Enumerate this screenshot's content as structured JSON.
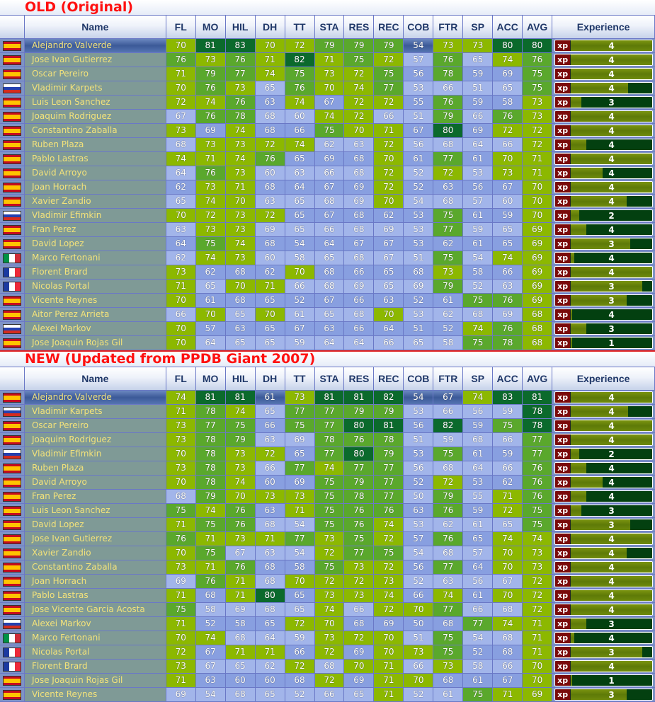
{
  "columns": [
    "",
    "Name",
    "FL",
    "MO",
    "HIL",
    "DH",
    "TT",
    "STA",
    "RES",
    "REC",
    "COB",
    "FTR",
    "SP",
    "ACC",
    "AVG",
    "Experience"
  ],
  "xp_badge": "xp",
  "colors": {
    "elite": "#0b6a2c",
    "high": "#5aa82c",
    "mid": "#8cb800",
    "low_a": "#889fe0",
    "low_b": "#a2b5ea",
    "label": "#ff1010"
  },
  "sections": [
    {
      "label": "OLD (Original)",
      "rows": [
        {
          "flag": "spain",
          "name": "Alejandro Valverde",
          "stats": [
            70,
            81,
            83,
            70,
            72,
            79,
            79,
            79,
            54,
            73,
            73,
            80,
            80
          ],
          "xp": 4,
          "xp_fill": 1.0
        },
        {
          "flag": "spain",
          "name": "Jose Ivan Gutierrez",
          "stats": [
            76,
            73,
            76,
            71,
            82,
            71,
            75,
            72,
            57,
            76,
            65,
            74,
            76
          ],
          "xp": 4,
          "xp_fill": 1.0
        },
        {
          "flag": "spain",
          "name": "Oscar Pereiro",
          "stats": [
            71,
            79,
            77,
            74,
            75,
            73,
            72,
            75,
            56,
            78,
            59,
            69,
            75
          ],
          "xp": 4,
          "xp_fill": 1.0
        },
        {
          "flag": "russia",
          "name": "Vladimir Karpets",
          "stats": [
            70,
            76,
            73,
            65,
            76,
            70,
            74,
            77,
            53,
            66,
            51,
            65,
            75
          ],
          "xp": 4,
          "xp_fill": 0.7
        },
        {
          "flag": "spain",
          "name": "Luis Leon Sanchez",
          "stats": [
            72,
            74,
            76,
            63,
            74,
            67,
            72,
            72,
            55,
            76,
            59,
            58,
            73
          ],
          "xp": 3,
          "xp_fill": 0.13
        },
        {
          "flag": "spain",
          "name": "Joaquim Rodriguez",
          "stats": [
            67,
            76,
            78,
            68,
            60,
            74,
            72,
            66,
            51,
            79,
            66,
            76,
            73
          ],
          "xp": 4,
          "xp_fill": 1.0
        },
        {
          "flag": "spain",
          "name": "Constantino Zaballa",
          "stats": [
            73,
            69,
            74,
            68,
            66,
            75,
            70,
            71,
            67,
            80,
            69,
            72,
            72
          ],
          "xp": 4,
          "xp_fill": 1.0
        },
        {
          "flag": "spain",
          "name": "Ruben Plaza",
          "stats": [
            68,
            73,
            73,
            72,
            74,
            62,
            63,
            72,
            56,
            68,
            64,
            66,
            72
          ],
          "xp": 4,
          "xp_fill": 0.19
        },
        {
          "flag": "spain",
          "name": "Pablo Lastras",
          "stats": [
            74,
            71,
            74,
            76,
            65,
            69,
            68,
            70,
            61,
            77,
            61,
            70,
            71
          ],
          "xp": 4,
          "xp_fill": 1.0
        },
        {
          "flag": "spain",
          "name": "David Arroyo",
          "stats": [
            64,
            76,
            73,
            60,
            63,
            66,
            68,
            72,
            52,
            72,
            53,
            73,
            71
          ],
          "xp": 4,
          "xp_fill": 0.39
        },
        {
          "flag": "spain",
          "name": "Joan Horrach",
          "stats": [
            62,
            73,
            71,
            68,
            64,
            67,
            69,
            72,
            52,
            63,
            56,
            67,
            70
          ],
          "xp": 4,
          "xp_fill": 1.0
        },
        {
          "flag": "spain",
          "name": "Xavier Zandio",
          "stats": [
            65,
            74,
            70,
            63,
            65,
            68,
            69,
            70,
            54,
            68,
            57,
            60,
            70
          ],
          "xp": 4,
          "xp_fill": 0.69
        },
        {
          "flag": "russia",
          "name": "Vladimir Efimkin",
          "stats": [
            70,
            72,
            73,
            72,
            65,
            67,
            68,
            62,
            53,
            75,
            61,
            59,
            70
          ],
          "xp": 2,
          "xp_fill": 0.1
        },
        {
          "flag": "spain",
          "name": "Fran Perez",
          "stats": [
            63,
            73,
            73,
            69,
            65,
            66,
            68,
            69,
            53,
            77,
            59,
            65,
            69
          ],
          "xp": 4,
          "xp_fill": 0.19
        },
        {
          "flag": "spain",
          "name": "David Lopez",
          "stats": [
            64,
            75,
            74,
            68,
            54,
            64,
            67,
            67,
            53,
            62,
            61,
            65,
            69
          ],
          "xp": 3,
          "xp_fill": 0.73
        },
        {
          "flag": "italy",
          "name": "Marco Fertonani",
          "stats": [
            62,
            74,
            73,
            60,
            58,
            65,
            68,
            67,
            51,
            75,
            54,
            74,
            69
          ],
          "xp": 4,
          "xp_fill": 0.04
        },
        {
          "flag": "france",
          "name": "Florent Brard",
          "stats": [
            73,
            62,
            68,
            62,
            70,
            68,
            66,
            65,
            68,
            73,
            58,
            66,
            69
          ],
          "xp": 4,
          "xp_fill": 1.0
        },
        {
          "flag": "france",
          "name": "Nicolas Portal",
          "stats": [
            71,
            65,
            70,
            71,
            66,
            68,
            69,
            65,
            69,
            79,
            52,
            63,
            69
          ],
          "xp": 3,
          "xp_fill": 0.88
        },
        {
          "flag": "spain",
          "name": "Vicente Reynes",
          "stats": [
            70,
            61,
            68,
            65,
            52,
            67,
            66,
            63,
            52,
            61,
            75,
            76,
            69
          ],
          "xp": 3,
          "xp_fill": 0.69
        },
        {
          "flag": "spain",
          "name": "Aitor Perez Arrieta",
          "stats": [
            66,
            70,
            65,
            70,
            61,
            65,
            68,
            70,
            53,
            62,
            68,
            69,
            68
          ],
          "xp": 4,
          "xp_fill": 0.02
        },
        {
          "flag": "russia",
          "name": "Alexei Markov",
          "stats": [
            70,
            57,
            63,
            65,
            67,
            63,
            66,
            64,
            51,
            52,
            74,
            76,
            68
          ],
          "xp": 3,
          "xp_fill": 0.19
        },
        {
          "flag": "spain",
          "name": "Jose Joaquin Rojas Gil",
          "stats": [
            70,
            64,
            65,
            65,
            59,
            64,
            64,
            66,
            65,
            58,
            75,
            78,
            68
          ],
          "xp": 1,
          "xp_fill": 0.02
        }
      ]
    },
    {
      "label": "NEW (Updated from PPDB Giant 2007)",
      "rows": [
        {
          "flag": "spain",
          "name": "Alejandro Valverde",
          "stats": [
            74,
            81,
            81,
            61,
            73,
            81,
            81,
            82,
            54,
            67,
            74,
            83,
            81
          ],
          "xp": 4,
          "xp_fill": 1.0
        },
        {
          "flag": "russia",
          "name": "Vladimir Karpets",
          "stats": [
            71,
            78,
            74,
            65,
            77,
            77,
            79,
            79,
            53,
            66,
            56,
            59,
            78
          ],
          "xp": 4,
          "xp_fill": 0.7
        },
        {
          "flag": "spain",
          "name": "Oscar Pereiro",
          "stats": [
            73,
            77,
            75,
            66,
            75,
            77,
            80,
            81,
            56,
            82,
            59,
            75,
            78
          ],
          "xp": 4,
          "xp_fill": 1.0
        },
        {
          "flag": "spain",
          "name": "Joaquim Rodriguez",
          "stats": [
            73,
            78,
            79,
            63,
            69,
            78,
            76,
            78,
            51,
            59,
            68,
            66,
            77
          ],
          "xp": 4,
          "xp_fill": 1.0
        },
        {
          "flag": "russia",
          "name": "Vladimir Efimkin",
          "stats": [
            70,
            78,
            73,
            72,
            65,
            77,
            80,
            79,
            53,
            75,
            61,
            59,
            77
          ],
          "xp": 2,
          "xp_fill": 0.1
        },
        {
          "flag": "spain",
          "name": "Ruben Plaza",
          "stats": [
            73,
            78,
            73,
            66,
            77,
            74,
            77,
            77,
            56,
            68,
            64,
            66,
            76
          ],
          "xp": 4,
          "xp_fill": 0.19
        },
        {
          "flag": "spain",
          "name": "David Arroyo",
          "stats": [
            70,
            78,
            74,
            60,
            69,
            75,
            79,
            77,
            52,
            72,
            53,
            62,
            76
          ],
          "xp": 4,
          "xp_fill": 0.39
        },
        {
          "flag": "spain",
          "name": "Fran Perez",
          "stats": [
            68,
            79,
            70,
            73,
            73,
            75,
            78,
            77,
            50,
            79,
            55,
            71,
            76
          ],
          "xp": 4,
          "xp_fill": 0.19
        },
        {
          "flag": "spain",
          "name": "Luis Leon Sanchez",
          "stats": [
            75,
            74,
            76,
            63,
            71,
            75,
            76,
            76,
            63,
            76,
            59,
            72,
            75
          ],
          "xp": 3,
          "xp_fill": 0.13
        },
        {
          "flag": "spain",
          "name": "David Lopez",
          "stats": [
            71,
            75,
            76,
            68,
            54,
            75,
            76,
            74,
            53,
            62,
            61,
            65,
            75
          ],
          "xp": 3,
          "xp_fill": 0.73
        },
        {
          "flag": "spain",
          "name": "Jose Ivan Gutierrez",
          "stats": [
            76,
            71,
            73,
            71,
            77,
            73,
            75,
            72,
            57,
            76,
            65,
            74,
            74
          ],
          "xp": 4,
          "xp_fill": 1.0
        },
        {
          "flag": "spain",
          "name": "Xavier Zandio",
          "stats": [
            70,
            75,
            67,
            63,
            54,
            72,
            77,
            75,
            54,
            68,
            57,
            70,
            73
          ],
          "xp": 4,
          "xp_fill": 0.69
        },
        {
          "flag": "spain",
          "name": "Constantino Zaballa",
          "stats": [
            73,
            71,
            76,
            68,
            58,
            75,
            73,
            72,
            56,
            77,
            64,
            70,
            73
          ],
          "xp": 4,
          "xp_fill": 1.0
        },
        {
          "flag": "spain",
          "name": "Joan Horrach",
          "stats": [
            69,
            76,
            71,
            68,
            70,
            72,
            72,
            73,
            52,
            63,
            56,
            67,
            72
          ],
          "xp": 4,
          "xp_fill": 1.0
        },
        {
          "flag": "spain",
          "name": "Pablo Lastras",
          "stats": [
            71,
            68,
            71,
            80,
            65,
            73,
            73,
            74,
            66,
            74,
            61,
            70,
            72
          ],
          "xp": 4,
          "xp_fill": 1.0
        },
        {
          "flag": "spain",
          "name": "Jose Vicente Garcia Acosta",
          "stats": [
            75,
            58,
            69,
            68,
            65,
            74,
            66,
            72,
            70,
            77,
            66,
            68,
            72
          ],
          "xp": 4,
          "xp_fill": 1.0
        },
        {
          "flag": "russia",
          "name": "Alexei Markov",
          "stats": [
            71,
            52,
            58,
            65,
            72,
            70,
            68,
            69,
            50,
            68,
            77,
            74,
            71
          ],
          "xp": 3,
          "xp_fill": 0.19
        },
        {
          "flag": "italy",
          "name": "Marco Fertonani",
          "stats": [
            70,
            74,
            68,
            64,
            59,
            73,
            72,
            70,
            51,
            75,
            54,
            68,
            71
          ],
          "xp": 4,
          "xp_fill": 0.04
        },
        {
          "flag": "france",
          "name": "Nicolas Portal",
          "stats": [
            72,
            67,
            71,
            71,
            66,
            72,
            69,
            70,
            73,
            75,
            52,
            68,
            71
          ],
          "xp": 3,
          "xp_fill": 0.88
        },
        {
          "flag": "france",
          "name": "Florent Brard",
          "stats": [
            73,
            67,
            65,
            62,
            72,
            68,
            70,
            71,
            66,
            73,
            58,
            66,
            70
          ],
          "xp": 4,
          "xp_fill": 1.0
        },
        {
          "flag": "spain",
          "name": "Jose Joaquin Rojas Gil",
          "stats": [
            71,
            63,
            60,
            60,
            68,
            72,
            69,
            71,
            70,
            68,
            61,
            67,
            70
          ],
          "xp": 1,
          "xp_fill": 0.02
        },
        {
          "flag": "spain",
          "name": "Vicente Reynes",
          "stats": [
            69,
            54,
            68,
            65,
            52,
            66,
            65,
            71,
            52,
            61,
            75,
            71,
            69
          ],
          "xp": 3,
          "xp_fill": 0.69
        }
      ]
    }
  ]
}
